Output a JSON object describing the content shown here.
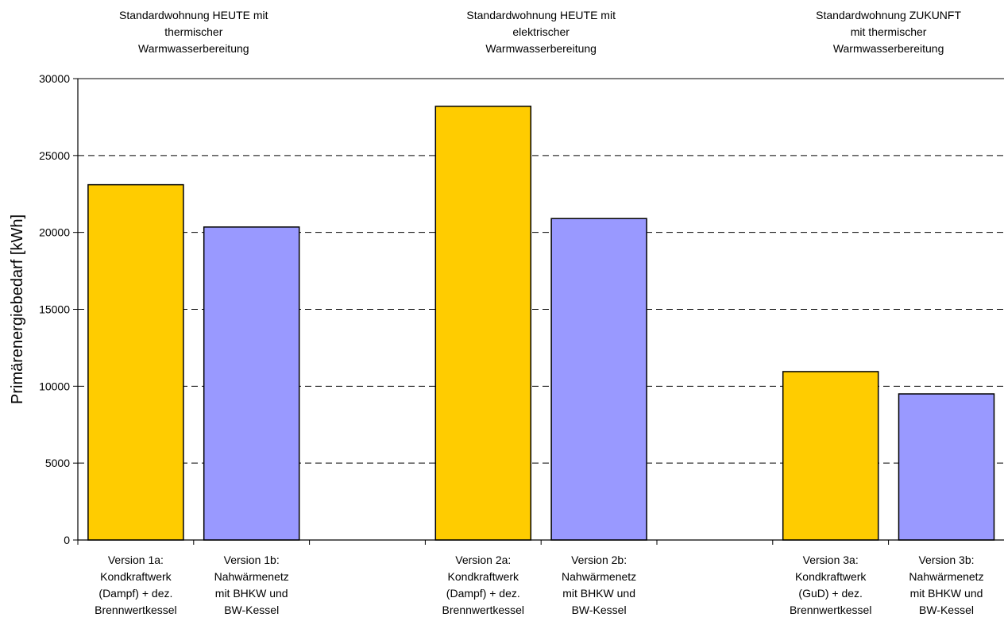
{
  "chart_data": {
    "type": "bar",
    "ylabel": "Primärenergiebedarf [kWh]",
    "ylim": [
      0,
      30000
    ],
    "yticks": [
      0,
      5000,
      10000,
      15000,
      20000,
      25000,
      30000
    ],
    "grid": "horizontal-dashed",
    "groups": [
      {
        "label_lines": [
          "Standardwohnung HEUTE mit",
          "thermischer",
          "Warmwasserbereitung"
        ]
      },
      {
        "label_lines": [
          "Standardwohnung HEUTE mit",
          "elektrischer",
          "Warmwasserbereitung"
        ]
      },
      {
        "label_lines": [
          "Standardwohnung ZUKUNFT",
          "mit thermischer",
          "Warmwasserbereitung"
        ]
      }
    ],
    "bars": [
      {
        "group": 0,
        "slot": 0,
        "value": 23100,
        "color": "#FFCC00",
        "label_lines": [
          "Version 1a:",
          "Kondkraftwerk",
          "(Dampf) + dez.",
          "Brennwertkessel"
        ]
      },
      {
        "group": 0,
        "slot": 1,
        "value": 20350,
        "color": "#9999FF",
        "label_lines": [
          "Version 1b:",
          "Nahwärmenetz",
          "mit BHKW und",
          "BW-Kessel"
        ]
      },
      {
        "group": 1,
        "slot": 0,
        "value": 28200,
        "color": "#FFCC00",
        "label_lines": [
          "Version 2a:",
          "Kondkraftwerk",
          "(Dampf) + dez.",
          "Brennwertkessel"
        ]
      },
      {
        "group": 1,
        "slot": 1,
        "value": 20900,
        "color": "#9999FF",
        "label_lines": [
          "Version 2b:",
          "Nahwärmenetz",
          "mit BHKW und",
          "BW-Kessel"
        ]
      },
      {
        "group": 2,
        "slot": 0,
        "value": 10950,
        "color": "#FFCC00",
        "label_lines": [
          "Version 3a:",
          "Kondkraftwerk",
          "(GuD) + dez.",
          "Brennwertkessel"
        ]
      },
      {
        "group": 2,
        "slot": 1,
        "value": 9500,
        "color": "#9999FF",
        "label_lines": [
          "Version 3b:",
          "Nahwärmenetz",
          "mit BHKW und",
          "BW-Kessel"
        ]
      }
    ]
  }
}
